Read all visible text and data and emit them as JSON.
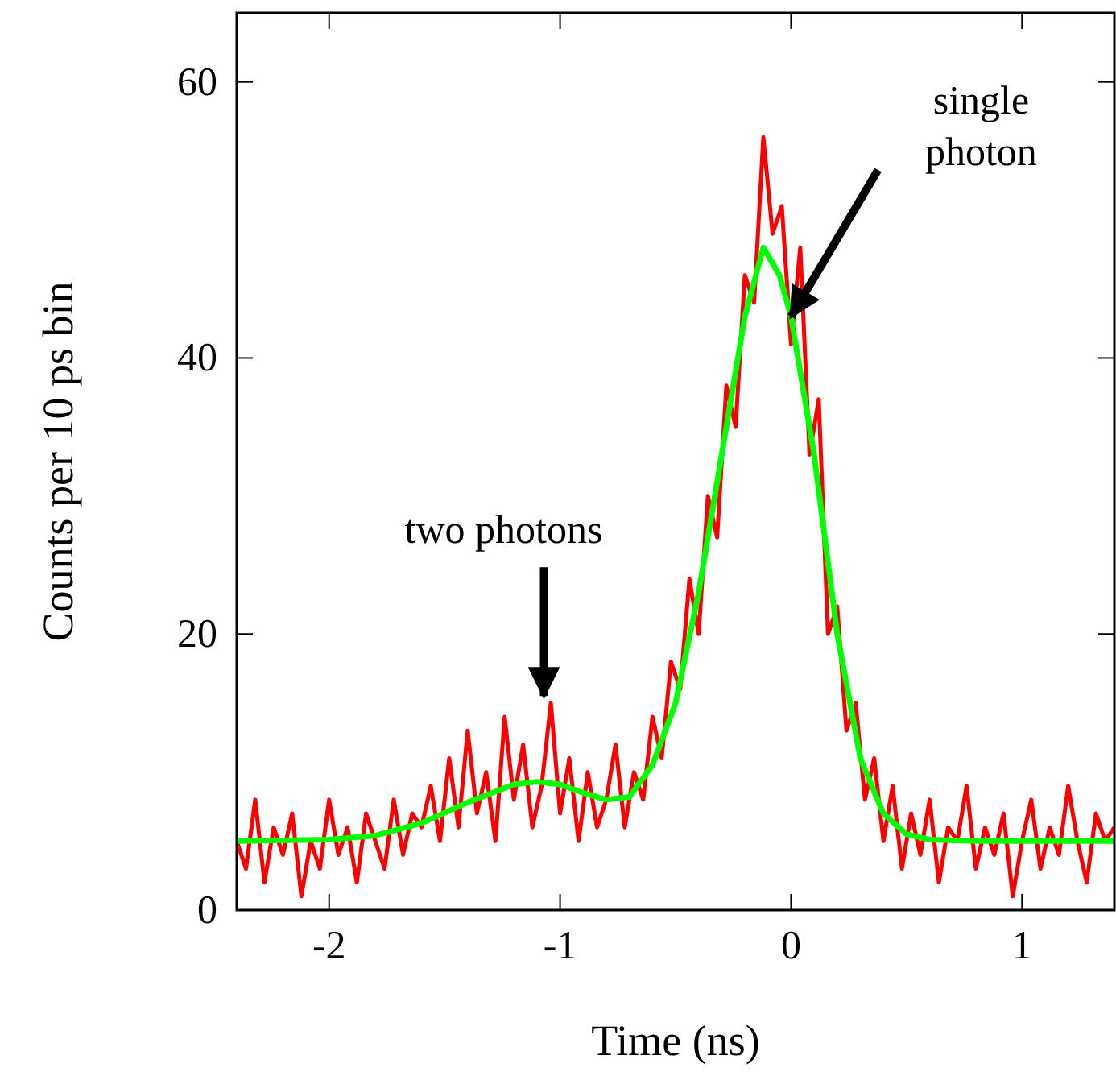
{
  "chart_data": {
    "type": "line",
    "xlabel": "Time (ns)",
    "ylabel": "Counts per 10 ps bin",
    "xlim": [
      -2.4,
      1.4
    ],
    "ylim": [
      0,
      65
    ],
    "xticks": [
      -2,
      -1,
      0,
      1
    ],
    "yticks": [
      0,
      20,
      40,
      60
    ],
    "grid": false,
    "marker": "none",
    "line_style": "solid",
    "series": [
      {
        "color": "#ff0000",
        "x": [
          -2.4,
          -2.36,
          -2.32,
          -2.28,
          -2.24,
          -2.2,
          -2.16,
          -2.12,
          -2.08,
          -2.04,
          -2.0,
          -1.96,
          -1.92,
          -1.88,
          -1.84,
          -1.8,
          -1.76,
          -1.72,
          -1.68,
          -1.64,
          -1.6,
          -1.56,
          -1.52,
          -1.48,
          -1.44,
          -1.4,
          -1.36,
          -1.32,
          -1.28,
          -1.24,
          -1.2,
          -1.16,
          -1.12,
          -1.08,
          -1.04,
          -1.0,
          -0.96,
          -0.92,
          -0.88,
          -0.84,
          -0.8,
          -0.76,
          -0.72,
          -0.68,
          -0.64,
          -0.6,
          -0.56,
          -0.52,
          -0.48,
          -0.44,
          -0.4,
          -0.36,
          -0.32,
          -0.28,
          -0.24,
          -0.2,
          -0.16,
          -0.12,
          -0.08,
          -0.04,
          0,
          0.04,
          0.08,
          0.12,
          0.16,
          0.2,
          0.24,
          0.28,
          0.32,
          0.36,
          0.4,
          0.44,
          0.48,
          0.52,
          0.56,
          0.6,
          0.64,
          0.68,
          0.72,
          0.76,
          0.8,
          0.84,
          0.88,
          0.92,
          0.96,
          1.0,
          1.04,
          1.08,
          1.12,
          1.16,
          1.2,
          1.24,
          1.28,
          1.32,
          1.36,
          1.4
        ],
        "values": [
          5,
          3,
          8,
          2,
          6,
          4,
          7,
          1,
          5,
          3,
          8,
          4,
          6,
          2,
          7,
          5,
          3,
          8,
          4,
          7,
          6,
          9,
          5,
          11,
          6,
          13,
          7,
          10,
          5,
          14,
          8,
          12,
          6,
          9,
          15,
          7,
          11,
          5,
          10,
          6,
          8,
          12,
          6,
          10,
          8,
          14,
          11,
          18,
          16,
          24,
          20,
          30,
          27,
          38,
          35,
          46,
          44,
          56,
          49,
          51,
          41,
          48,
          33,
          37,
          20,
          22,
          13,
          15,
          8,
          11,
          5,
          9,
          3,
          7,
          4,
          8,
          2,
          6,
          5,
          9,
          3,
          6,
          4,
          7,
          1,
          5,
          8,
          3,
          6,
          4,
          9,
          5,
          2,
          7,
          5,
          6
        ]
      },
      {
        "color": "#00ff00",
        "x": [
          -2.4,
          -2.0,
          -1.8,
          -1.6,
          -1.4,
          -1.2,
          -1.1,
          -1.0,
          -0.9,
          -0.8,
          -0.7,
          -0.6,
          -0.5,
          -0.4,
          -0.3,
          -0.2,
          -0.12,
          -0.05,
          0,
          0.1,
          0.2,
          0.3,
          0.4,
          0.5,
          0.6,
          0.8,
          1.0,
          1.4
        ],
        "values": [
          5,
          5.1,
          5.4,
          6.3,
          7.8,
          9.1,
          9.3,
          9.1,
          8.5,
          8,
          8.2,
          10.5,
          15,
          23,
          33,
          43,
          48,
          46,
          43,
          33,
          20,
          11,
          7,
          5.5,
          5.1,
          5,
          5,
          5
        ]
      }
    ],
    "annotations": [
      {
        "text": "two photons",
        "x": -1.07,
        "y": 15.5
      },
      {
        "text": "single photon",
        "x": 0,
        "y": 43
      }
    ]
  }
}
